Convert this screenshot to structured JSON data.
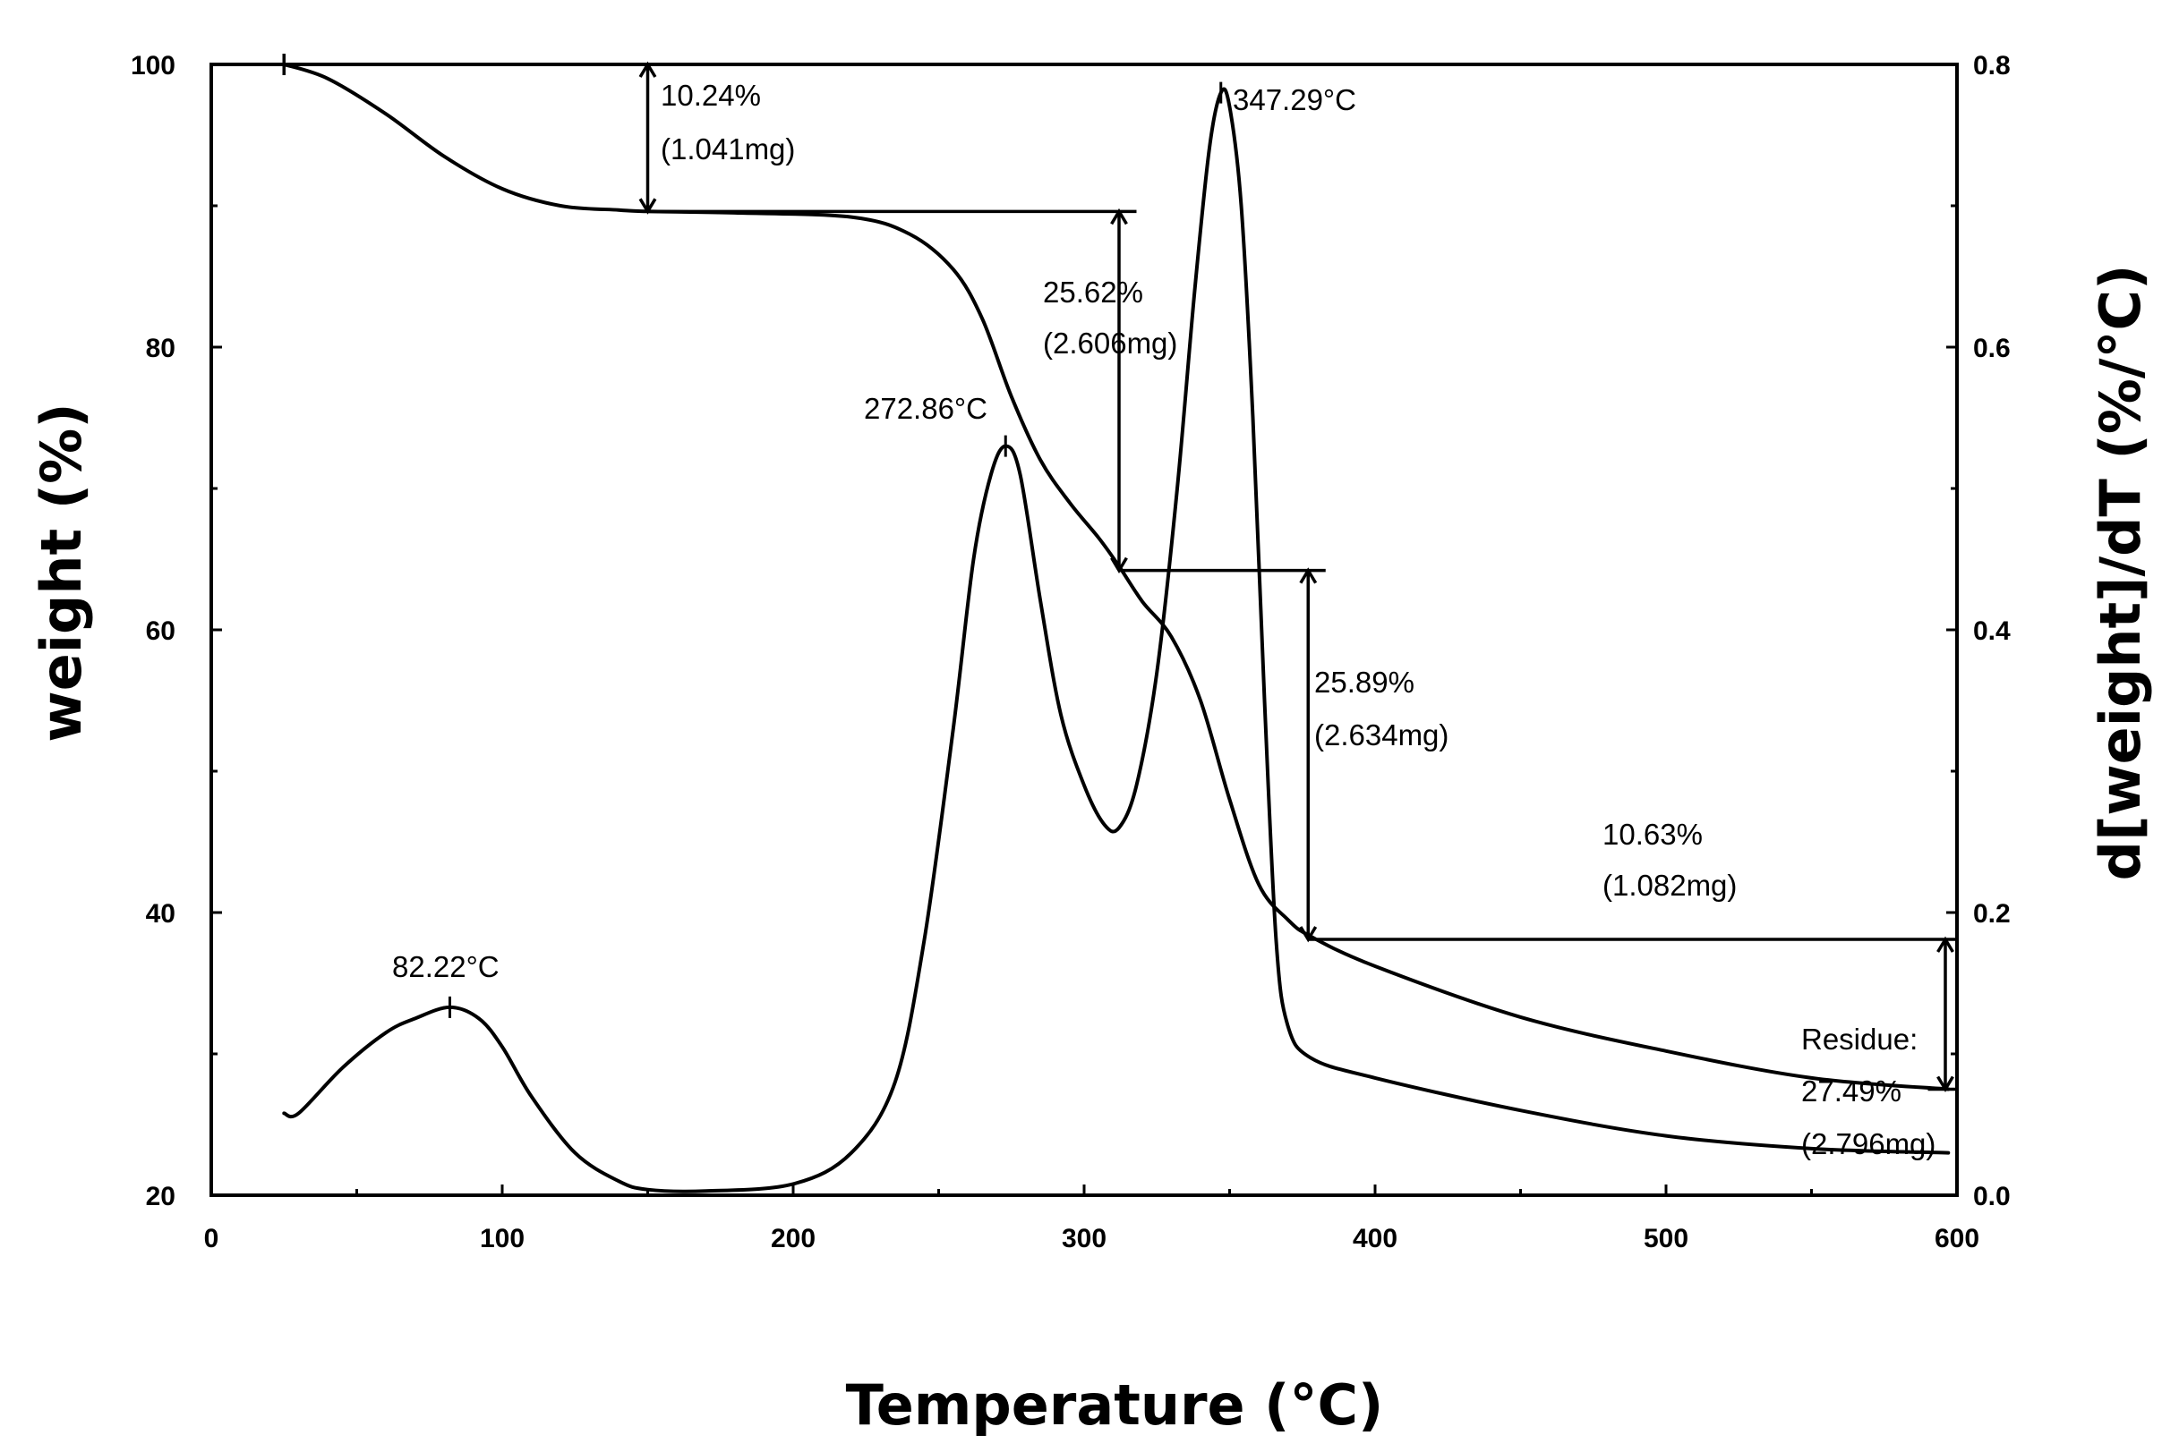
{
  "chart_data": {
    "type": "line",
    "xlabel": "Temperature (°C)",
    "ylabel": "weight (%)",
    "y2label": "d[weight]/dT (%/°C)",
    "xlim": [
      0,
      600
    ],
    "ylim": [
      20,
      100
    ],
    "y2lim": [
      0.0,
      0.8
    ],
    "xticks": [
      "0",
      "100",
      "200",
      "300",
      "400",
      "500",
      "600"
    ],
    "yticks": [
      "20",
      "40",
      "60",
      "80",
      "100"
    ],
    "y2ticks": [
      "0.0",
      "0.2",
      "0.4",
      "0.6",
      "0.8"
    ],
    "grid": false,
    "series": [
      {
        "name": "weight (%)",
        "axis": "left",
        "x": [
          25,
          40,
          60,
          80,
          100,
          120,
          140,
          150,
          180,
          220,
          240,
          255,
          265,
          275,
          285,
          295,
          305,
          312,
          320,
          330,
          340,
          350,
          360,
          370,
          378,
          400,
          450,
          500,
          550,
          597
        ],
        "y": [
          100,
          99,
          96.5,
          93.5,
          91.2,
          90,
          89.7,
          89.6,
          89.5,
          89.2,
          88,
          85.5,
          82,
          76.5,
          72,
          69,
          66.5,
          64.5,
          62,
          59.5,
          55,
          48,
          42,
          39.5,
          38.3,
          36.2,
          32.6,
          30.2,
          28.3,
          27.5
        ]
      },
      {
        "name": "d[weight]/dT (%/°C)",
        "axis": "right",
        "x": [
          25,
          30,
          45,
          60,
          70,
          82,
          92,
          100,
          110,
          125,
          140,
          150,
          170,
          200,
          220,
          235,
          245,
          255,
          262,
          268,
          273,
          278,
          285,
          292,
          300,
          307,
          312,
          318,
          325,
          332,
          338,
          343,
          347,
          350,
          354,
          358,
          362,
          366,
          370,
          378,
          400,
          450,
          500,
          550,
          597
        ],
        "y": [
          0.058,
          0.058,
          0.09,
          0.115,
          0.125,
          0.133,
          0.125,
          0.105,
          0.07,
          0.03,
          0.01,
          0.004,
          0.003,
          0.008,
          0.03,
          0.08,
          0.18,
          0.33,
          0.45,
          0.51,
          0.53,
          0.51,
          0.42,
          0.34,
          0.29,
          0.262,
          0.26,
          0.29,
          0.37,
          0.5,
          0.64,
          0.74,
          0.78,
          0.77,
          0.7,
          0.55,
          0.35,
          0.18,
          0.12,
          0.097,
          0.083,
          0.06,
          0.042,
          0.033,
          0.03
        ]
      }
    ],
    "annotations": {
      "step1_pct": "10.24%",
      "step1_mg": "(1.041mg)",
      "step2_pct": "25.62%",
      "step2_mg": "(2.606mg)",
      "step3_pct": "25.89%",
      "step3_mg": "(2.634mg)",
      "step4_pct": "10.63%",
      "step4_mg": "(1.082mg)",
      "peak1": "82.22°C",
      "peak2": "272.86°C",
      "peak3": "347.29°C",
      "residue_label": "Residue:",
      "residue_pct": "27.49%",
      "residue_mg": "(2.796mg)"
    }
  }
}
